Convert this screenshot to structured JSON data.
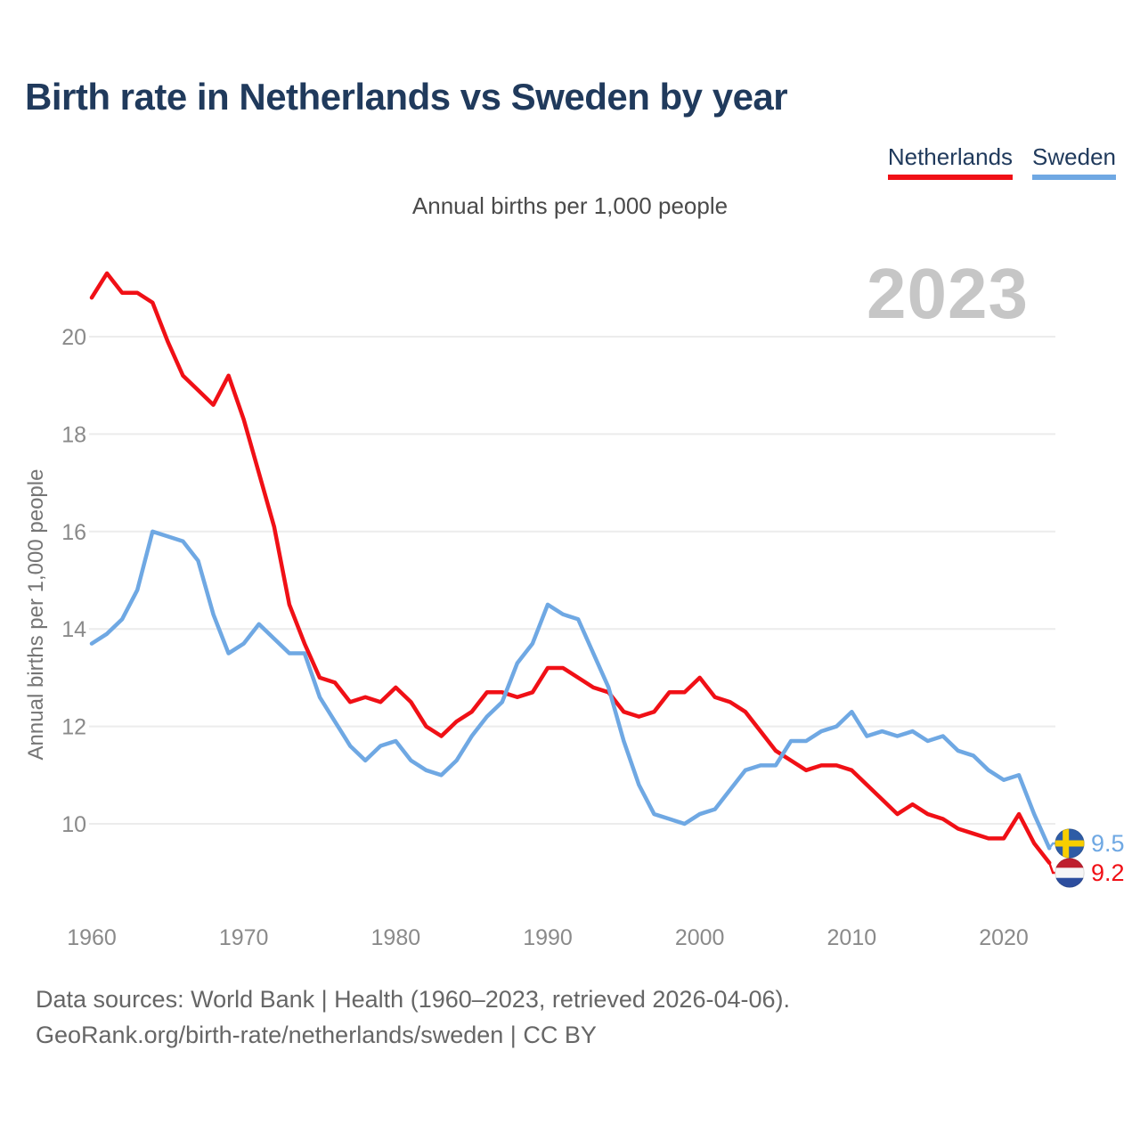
{
  "header": {
    "title": "Birth rate in Netherlands vs Sweden by year",
    "subtitle": "Annual births per 1,000 people"
  },
  "legend": {
    "items": [
      {
        "label": "Netherlands",
        "color": "#f01016"
      },
      {
        "label": "Sweden",
        "color": "#6fa8e3"
      }
    ]
  },
  "chart": {
    "watermark_year": "2023",
    "end_labels": [
      {
        "series": "Sweden",
        "value": "9.5",
        "flag": "sweden-flag"
      },
      {
        "series": "Netherlands",
        "value": "9.2",
        "flag": "netherlands-flag"
      }
    ]
  },
  "axes": {
    "y_axis_title": "Annual births per 1,000 people",
    "y_tick_labels": [
      "10",
      "12",
      "14",
      "16",
      "18",
      "20"
    ],
    "x_tick_labels": [
      "1960",
      "1970",
      "1980",
      "1990",
      "2000",
      "2010",
      "2020"
    ]
  },
  "footer": {
    "line1": "Data sources: World Bank | Health (1960–2023, retrieved 2026-04-06).",
    "line2": "GeoRank.org/birth-rate/netherlands/sweden | CC BY"
  },
  "chart_data": {
    "type": "line",
    "title": "Birth rate in Netherlands vs Sweden by year",
    "unit": "Annual births per 1,000 people",
    "ylabel": "Annual births per 1,000 people",
    "grid": "horizontal",
    "legend_position": "top-right",
    "x_ticks": [
      1960,
      1970,
      1980,
      1990,
      2000,
      2010,
      2020
    ],
    "y_ticks": [
      10,
      12,
      14,
      16,
      18,
      20
    ],
    "ylim": [
      9.0,
      21.5
    ],
    "years": [
      1960,
      1961,
      1962,
      1963,
      1964,
      1965,
      1966,
      1967,
      1968,
      1969,
      1970,
      1971,
      1972,
      1973,
      1974,
      1975,
      1976,
      1977,
      1978,
      1979,
      1980,
      1981,
      1982,
      1983,
      1984,
      1985,
      1986,
      1987,
      1988,
      1989,
      1990,
      1991,
      1992,
      1993,
      1994,
      1995,
      1996,
      1997,
      1998,
      1999,
      2000,
      2001,
      2002,
      2003,
      2004,
      2005,
      2006,
      2007,
      2008,
      2009,
      2010,
      2011,
      2012,
      2013,
      2014,
      2015,
      2016,
      2017,
      2018,
      2019,
      2020,
      2021,
      2022,
      2023
    ],
    "series": [
      {
        "name": "Netherlands",
        "color": "#f01016",
        "end_value": 9.2,
        "values": [
          20.8,
          21.3,
          20.9,
          20.9,
          20.7,
          19.9,
          19.2,
          18.9,
          18.6,
          19.2,
          18.3,
          17.2,
          16.1,
          14.5,
          13.7,
          13.0,
          12.9,
          12.5,
          12.6,
          12.5,
          12.8,
          12.5,
          12.0,
          11.8,
          12.1,
          12.3,
          12.7,
          12.7,
          12.6,
          12.7,
          13.2,
          13.2,
          13.0,
          12.8,
          12.7,
          12.3,
          12.2,
          12.3,
          12.7,
          12.7,
          13.0,
          12.6,
          12.5,
          12.3,
          11.9,
          11.5,
          11.3,
          11.1,
          11.2,
          11.2,
          11.1,
          10.8,
          10.5,
          10.2,
          10.4,
          10.2,
          10.1,
          9.9,
          9.8,
          9.7,
          9.7,
          10.2,
          9.6,
          9.2
        ]
      },
      {
        "name": "Sweden",
        "color": "#6fa8e3",
        "end_value": 9.5,
        "values": [
          13.7,
          13.9,
          14.2,
          14.8,
          16.0,
          15.9,
          15.8,
          15.4,
          14.3,
          13.5,
          13.7,
          14.1,
          13.8,
          13.5,
          13.5,
          12.6,
          12.1,
          11.6,
          11.3,
          11.6,
          11.7,
          11.3,
          11.1,
          11.0,
          11.3,
          11.8,
          12.2,
          12.5,
          13.3,
          13.7,
          14.5,
          14.3,
          14.2,
          13.5,
          12.8,
          11.7,
          10.8,
          10.2,
          10.1,
          10.0,
          10.2,
          10.3,
          10.7,
          11.1,
          11.2,
          11.2,
          11.7,
          11.7,
          11.9,
          12.0,
          12.3,
          11.8,
          11.9,
          11.8,
          11.9,
          11.7,
          11.8,
          11.5,
          11.4,
          11.1,
          10.9,
          11.0,
          10.2,
          9.5
        ]
      }
    ]
  }
}
